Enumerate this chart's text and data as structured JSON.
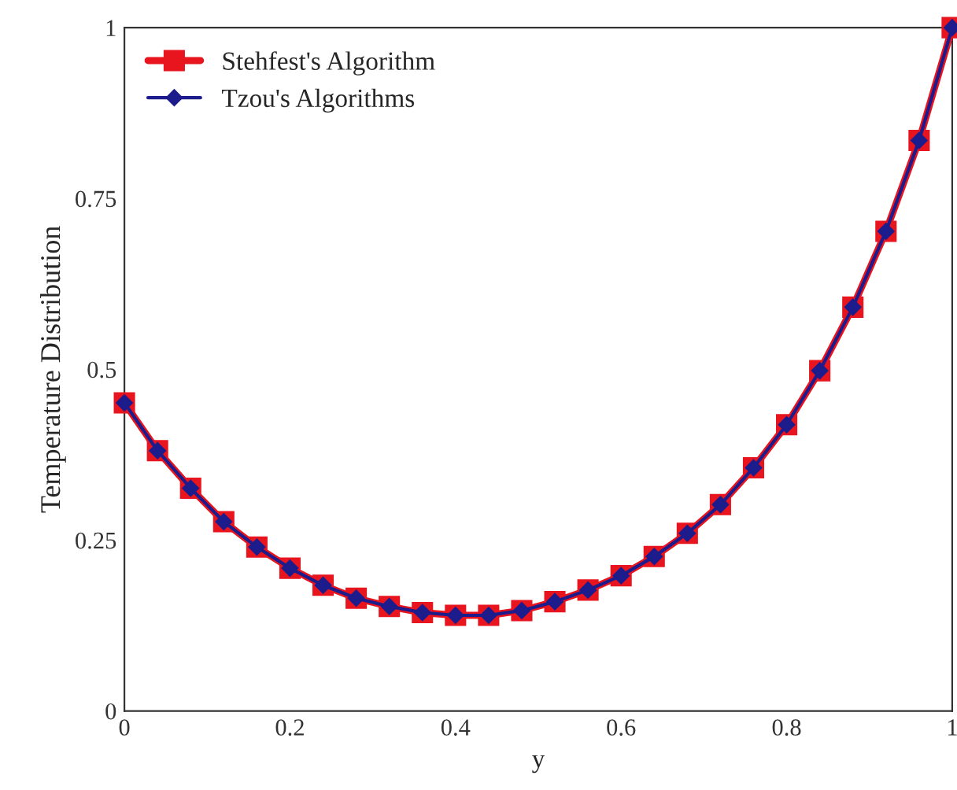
{
  "chart_data": {
    "type": "line",
    "xlabel": "y",
    "ylabel": "Temperature Distribution",
    "x": [
      0,
      0.04,
      0.08,
      0.12,
      0.16,
      0.2,
      0.24,
      0.28,
      0.32,
      0.36,
      0.4,
      0.44,
      0.48,
      0.52,
      0.56,
      0.6,
      0.64,
      0.68,
      0.72,
      0.76,
      0.8,
      0.84,
      0.88,
      0.92,
      0.96,
      1
    ],
    "series": [
      {
        "name": "Stehfest's Algorithm",
        "color": "#e8141e",
        "marker": "square",
        "line_style": "solid",
        "values": [
          0.451,
          0.381,
          0.326,
          0.277,
          0.24,
          0.209,
          0.184,
          0.165,
          0.153,
          0.144,
          0.14,
          0.14,
          0.147,
          0.16,
          0.177,
          0.198,
          0.226,
          0.26,
          0.302,
          0.356,
          0.419,
          0.498,
          0.591,
          0.702,
          0.835,
          1.0
        ]
      },
      {
        "name": "Tzou's Algorithms",
        "color": "#1c1c8c",
        "marker": "diamond",
        "line_style": "solid",
        "values": [
          0.451,
          0.381,
          0.326,
          0.277,
          0.24,
          0.209,
          0.184,
          0.165,
          0.153,
          0.144,
          0.14,
          0.14,
          0.147,
          0.16,
          0.177,
          0.198,
          0.226,
          0.26,
          0.302,
          0.356,
          0.419,
          0.498,
          0.591,
          0.702,
          0.835,
          1.0
        ]
      }
    ],
    "xlim": [
      0,
      1
    ],
    "ylim": [
      0,
      1
    ],
    "xticks": [
      0,
      0.2,
      0.4,
      0.6,
      0.8,
      1
    ],
    "yticks": [
      0,
      0.25,
      0.5,
      0.75,
      1
    ],
    "grid": false,
    "legend": "top left"
  }
}
